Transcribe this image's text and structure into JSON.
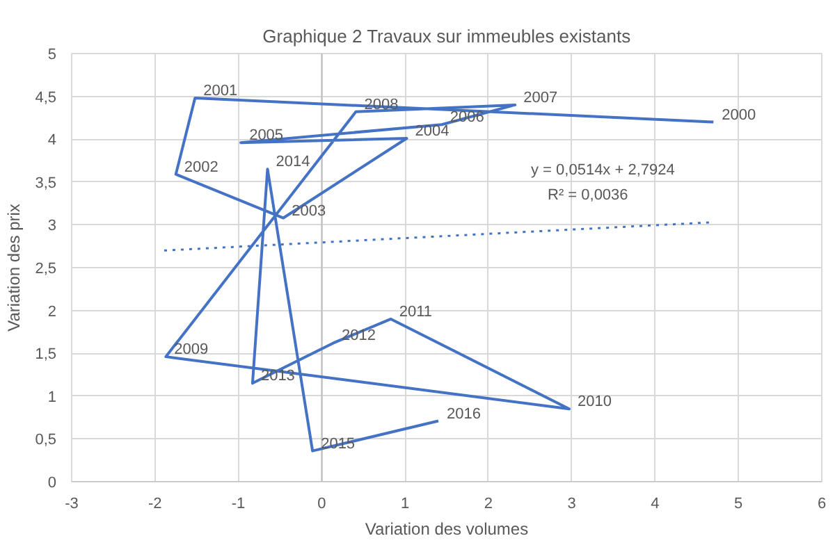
{
  "chart_data": {
    "type": "line",
    "title": "Graphique 2 Travaux sur immeubles existants",
    "xlabel": "Variation des volumes",
    "ylabel": "Variation des prix",
    "x": [
      4.7,
      -1.52,
      -1.75,
      -0.46,
      1.02,
      -0.97,
      1.44,
      2.32,
      0.41,
      -1.87,
      2.97,
      0.83,
      0.14,
      -0.83,
      -0.65,
      -0.11,
      1.4
    ],
    "series": [
      {
        "color": "#4472c4",
        "values": [
          4.2,
          4.48,
          3.59,
          3.08,
          4.01,
          3.96,
          4.17,
          4.4,
          4.32,
          1.46,
          0.85,
          1.9,
          1.62,
          1.15,
          3.65,
          0.36,
          0.71
        ],
        "marker": "none",
        "line_style": "solid"
      },
      {
        "type": "line",
        "color": "#4472c4",
        "x": [
          -1.89,
          4.7
        ],
        "values": [
          2.7,
          3.03
        ],
        "line_style": "dotted",
        "marker": "none"
      }
    ],
    "xlim": [
      -3,
      6
    ],
    "xticks": [
      -3,
      -2,
      -1,
      0,
      1,
      2,
      3,
      4,
      5,
      6
    ],
    "ylim": [
      0,
      5
    ],
    "yticks": [
      0,
      {
        "value": 0.5,
        "label": "0,5"
      },
      1,
      {
        "value": 1.5,
        "label": "1,5"
      },
      2,
      {
        "value": 2.5,
        "label": "2,5"
      },
      3,
      {
        "value": 3.5,
        "label": "3,5"
      },
      4,
      {
        "value": 4.5,
        "label": "4,5"
      },
      5
    ],
    "grid": true,
    "annotations": [
      {
        "text": "2000",
        "x": 4.7,
        "y": 4.2
      },
      {
        "text": "2001",
        "x": -1.52,
        "y": 4.48
      },
      {
        "text": "2002",
        "x": -1.75,
        "y": 3.59
      },
      {
        "text": "2003",
        "x": -0.46,
        "y": 3.08
      },
      {
        "text": "2004",
        "x": 1.02,
        "y": 4.01
      },
      {
        "text": "2005",
        "x": -0.97,
        "y": 3.96
      },
      {
        "text": "2006",
        "x": 1.44,
        "y": 4.17
      },
      {
        "text": "2007",
        "x": 2.32,
        "y": 4.4
      },
      {
        "text": "2008",
        "x": 0.41,
        "y": 4.32
      },
      {
        "text": "2009",
        "x": -1.87,
        "y": 1.46
      },
      {
        "text": "2010",
        "x": 2.97,
        "y": 0.85
      },
      {
        "text": "2011",
        "x": 0.83,
        "y": 1.9
      },
      {
        "text": "2012",
        "x": 0.14,
        "y": 1.62
      },
      {
        "text": "2013",
        "x": -0.83,
        "y": 1.15
      },
      {
        "text": "2014",
        "x": -0.65,
        "y": 3.65
      },
      {
        "text": "2015",
        "x": -0.11,
        "y": 0.36
      },
      {
        "text": "2016",
        "x": 1.4,
        "y": 0.71
      },
      "y = 0,0514x + 2,7924",
      "R² = 0,0036"
    ]
  }
}
